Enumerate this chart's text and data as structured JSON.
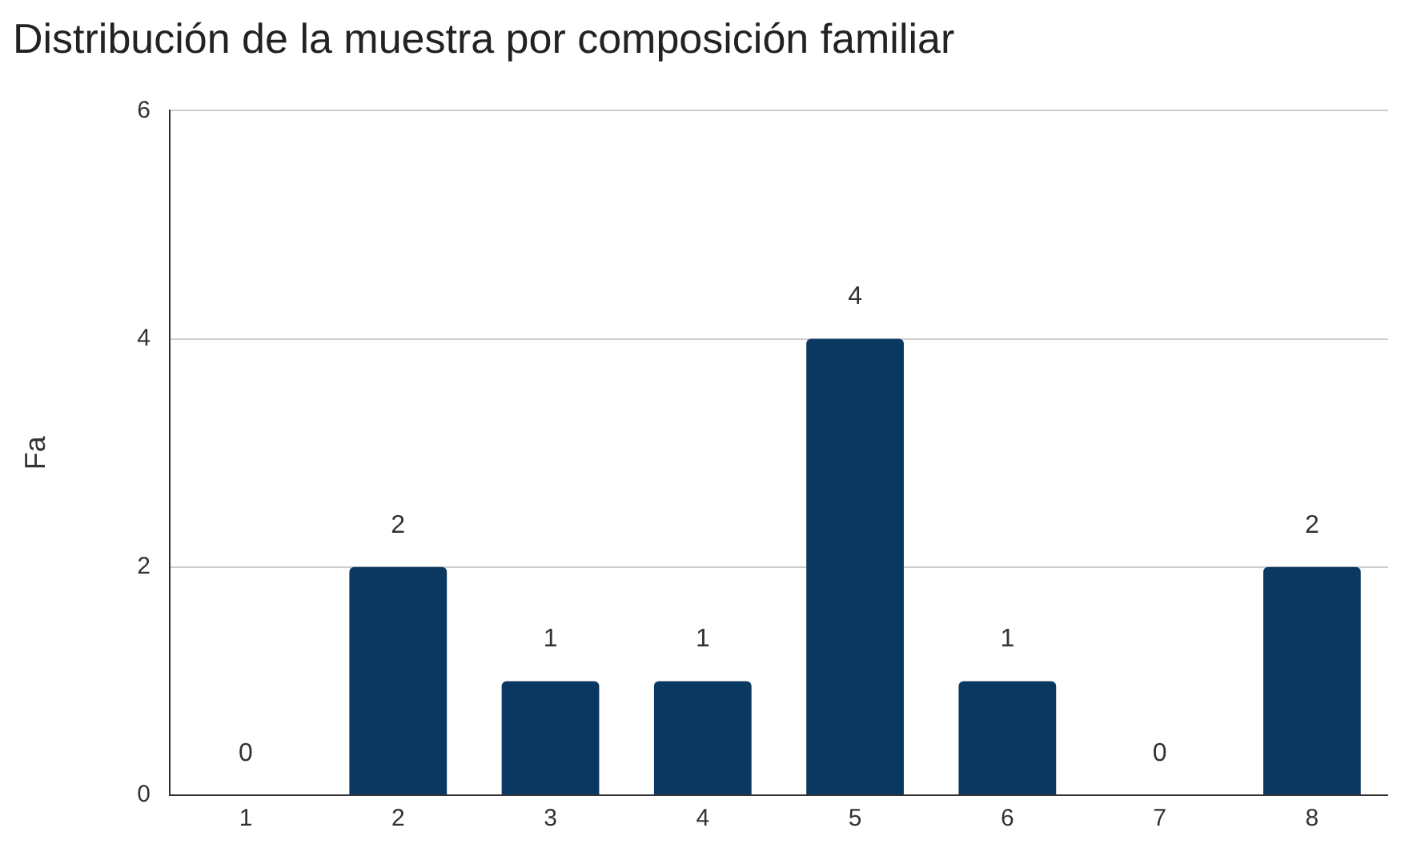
{
  "chart_data": {
    "type": "bar",
    "title": "Distribución de la muestra por composición familiar",
    "ylabel": "Fa",
    "categories": [
      "1",
      "2",
      "3",
      "4",
      "5",
      "6",
      "7",
      "8"
    ],
    "values": [
      0,
      2,
      1,
      1,
      4,
      1,
      0,
      2
    ],
    "color": "#0b3861",
    "ylim": [
      0,
      6
    ],
    "yticks": [
      0,
      2,
      4,
      6
    ],
    "grid": "y",
    "data_labels": true,
    "legend": false
  }
}
